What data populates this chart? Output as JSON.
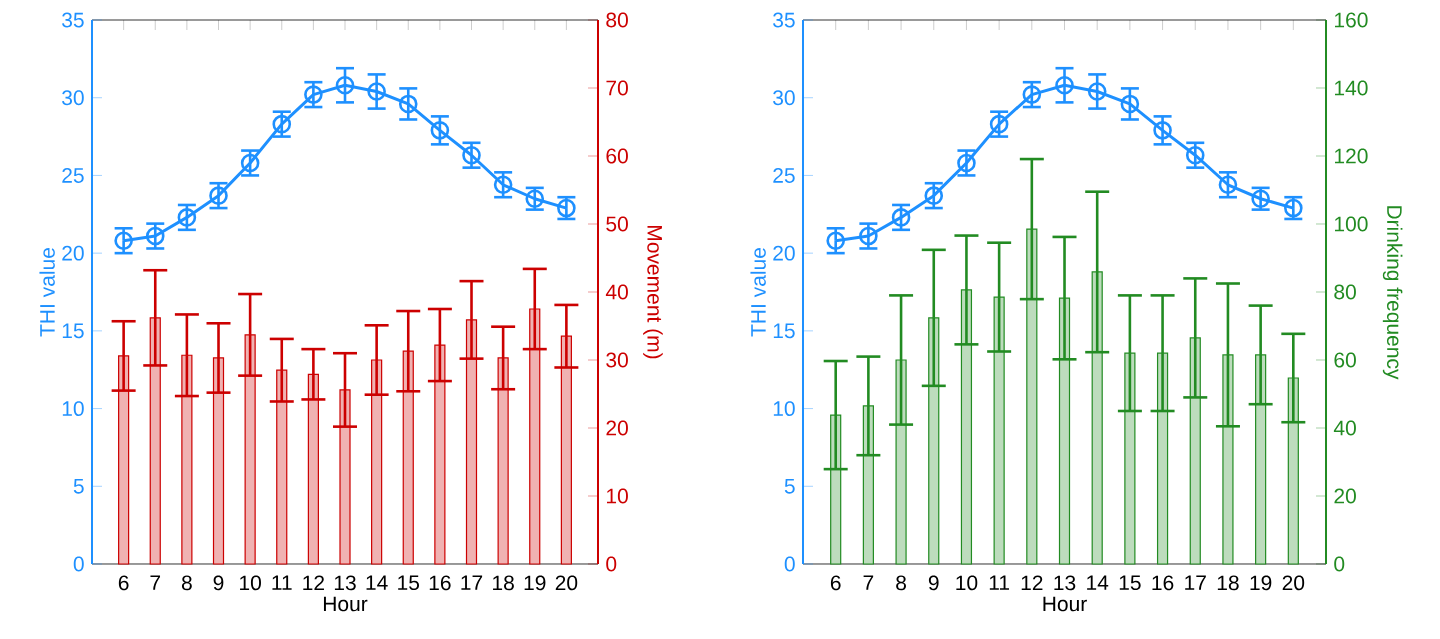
{
  "chart_data": [
    {
      "type": "line",
      "xlabel": "Hour",
      "ylabel": "THI value",
      "y2label": "Movement (m)",
      "categories": [
        "6",
        "7",
        "8",
        "9",
        "10",
        "11",
        "12",
        "13",
        "14",
        "15",
        "16",
        "17",
        "18",
        "19",
        "20"
      ],
      "ylim": [
        0,
        35
      ],
      "yticks": [
        0,
        5,
        10,
        15,
        20,
        25,
        30,
        35
      ],
      "y2lim": [
        0,
        80
      ],
      "y2ticks": [
        0,
        10,
        20,
        30,
        40,
        50,
        60,
        70,
        80
      ],
      "grid": false,
      "series": [
        {
          "type": "bar",
          "axis": "y2",
          "color": "#cc0000",
          "values": [
            30.6,
            36.2,
            30.7,
            30.3,
            33.7,
            28.5,
            27.9,
            25.6,
            30.0,
            31.3,
            32.2,
            35.9,
            30.3,
            37.5,
            33.5
          ],
          "errors": [
            5.1,
            7.0,
            6.0,
            5.1,
            6.0,
            4.6,
            3.7,
            5.4,
            5.1,
            5.9,
            5.3,
            5.7,
            4.6,
            5.9,
            4.6
          ]
        },
        {
          "axis": "y",
          "color": "#1e90ff",
          "marker": "circle",
          "values": [
            20.8,
            21.1,
            22.3,
            23.7,
            25.8,
            28.3,
            30.2,
            30.8,
            30.4,
            29.6,
            27.9,
            26.3,
            24.4,
            23.5,
            22.9
          ],
          "errors": [
            0.8,
            0.8,
            0.8,
            0.8,
            0.8,
            0.8,
            0.8,
            1.1,
            1.1,
            1.0,
            0.9,
            0.8,
            0.8,
            0.7,
            0.7
          ]
        }
      ]
    },
    {
      "type": "line",
      "xlabel": "Hour",
      "ylabel": "THI value",
      "y2label": "Drinking frequency",
      "categories": [
        "6",
        "7",
        "8",
        "9",
        "10",
        "11",
        "12",
        "13",
        "14",
        "15",
        "16",
        "17",
        "18",
        "19",
        "20"
      ],
      "ylim": [
        0,
        35
      ],
      "yticks": [
        0,
        5,
        10,
        15,
        20,
        25,
        30,
        35
      ],
      "y2lim": [
        0,
        160
      ],
      "y2ticks": [
        0,
        20,
        40,
        60,
        80,
        100,
        120,
        140,
        160
      ],
      "grid": false,
      "series": [
        {
          "type": "bar",
          "axis": "y2",
          "color": "#228b22",
          "values": [
            43.8,
            46.5,
            60.0,
            72.4,
            80.6,
            78.5,
            98.5,
            78.2,
            85.9,
            62.0,
            62.0,
            66.5,
            61.5,
            61.5,
            54.7
          ],
          "errors": [
            15.9,
            14.5,
            19.0,
            20.0,
            16.0,
            16.0,
            20.6,
            18.0,
            23.6,
            17.0,
            17.0,
            17.5,
            21.0,
            14.5,
            13.0
          ]
        },
        {
          "axis": "y",
          "color": "#1e90ff",
          "marker": "circle",
          "values": [
            20.8,
            21.1,
            22.3,
            23.7,
            25.8,
            28.3,
            30.2,
            30.8,
            30.4,
            29.6,
            27.9,
            26.3,
            24.4,
            23.5,
            22.9
          ],
          "errors": [
            0.8,
            0.8,
            0.8,
            0.8,
            0.8,
            0.8,
            0.8,
            1.1,
            1.1,
            1.0,
            0.9,
            0.8,
            0.8,
            0.7,
            0.7
          ]
        }
      ]
    }
  ]
}
